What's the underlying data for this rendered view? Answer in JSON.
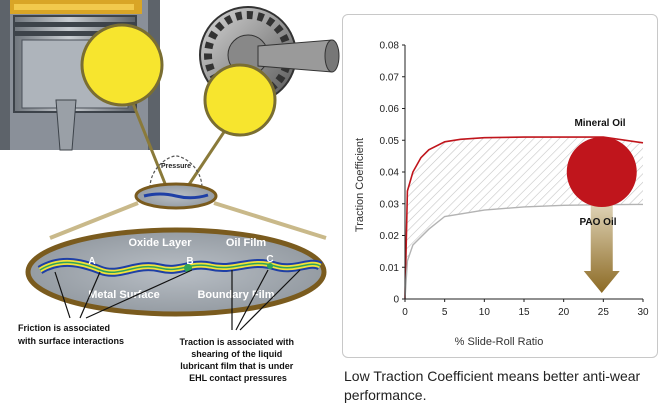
{
  "diagram": {
    "pressure_label": "Pressure",
    "contact_labels": {
      "oxide_layer": "Oxide Layer",
      "oil_film": "Oil Film",
      "metal_surface": "Metal Surface",
      "boundary_film": "Boundary Film",
      "a": "A",
      "b": "B",
      "c": "C"
    },
    "friction_note": [
      "Friction is associated",
      "with surface interactions"
    ],
    "traction_note": [
      "Traction is associated with",
      "shearing of the liquid",
      "lubricant film that is under",
      "EHL contact pressures"
    ]
  },
  "caption": "Low Traction Coefficient  means better anti-wear performance.",
  "colors": {
    "highlight_yellow": "#f7e52e",
    "mineral_red": "#c0151c",
    "pao_gray": "#b3b3b3",
    "arrow_brown": "#8c6a24"
  },
  "chart_data": {
    "type": "line",
    "xlabel": "% Slide-Roll Ratio",
    "ylabel": "Traction Coefficient",
    "xlim": [
      0,
      30
    ],
    "ylim": [
      0,
      0.08
    ],
    "x_ticks": [
      "0",
      "5",
      "10",
      "15",
      "20",
      "25",
      "30"
    ],
    "y_ticks": [
      "0",
      "0.01",
      "0.02",
      "0.03",
      "0.04",
      "0.05",
      "0.06",
      "0.07",
      "0.08"
    ],
    "grid": false,
    "series": [
      {
        "name": "Mineral Oil",
        "color": "#c0151c",
        "x": [
          0,
          0.3,
          1,
          2,
          3,
          5,
          7,
          10,
          15,
          20,
          25,
          30
        ],
        "y": [
          0,
          0.034,
          0.04,
          0.0445,
          0.047,
          0.0495,
          0.0503,
          0.0508,
          0.051,
          0.051,
          0.051,
          0.0492
        ]
      },
      {
        "name": "PAO Oil",
        "color": "#b3b3b3",
        "x": [
          0,
          0.3,
          1,
          3,
          5,
          10,
          15,
          20,
          25,
          30
        ],
        "y": [
          0,
          0.012,
          0.017,
          0.022,
          0.026,
          0.028,
          0.029,
          0.0295,
          0.0297,
          0.0298
        ]
      }
    ],
    "annotation": "Shaded gap between Mineral Oil and PAO Oil curves; red circle marks Mineral Oil level with a downward arrow to PAO Oil level"
  }
}
